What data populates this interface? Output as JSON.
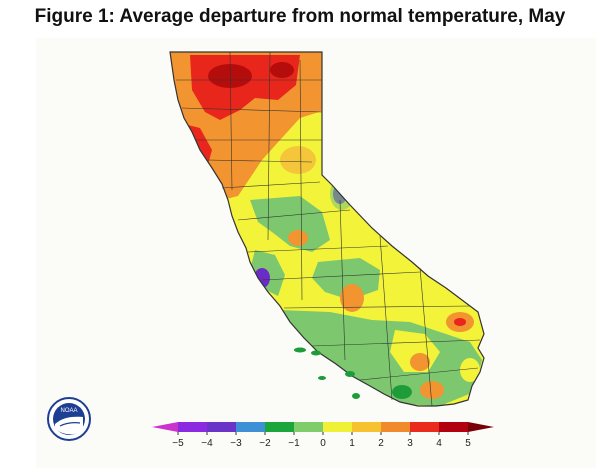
{
  "title": "Figure 1: Average departure from normal temperature, May",
  "logo": {
    "text": "NOAA",
    "name": "noaa-logo"
  },
  "legend": {
    "ticks": [
      "−5",
      "−4",
      "−3",
      "−2",
      "−1",
      "0",
      "1",
      "2",
      "3",
      "4",
      "5"
    ],
    "colors": [
      "#cc33cc",
      "#8a2be2",
      "#6b34c8",
      "#3d8fd6",
      "#1ba63c",
      "#7fcc6a",
      "#f0f036",
      "#f7c230",
      "#f08a2a",
      "#ea2a1c",
      "#b3000f",
      "#7a0008"
    ]
  },
  "map_colors": {
    "background": "#f3f33a",
    "red": "#e8261c",
    "dark_red": "#b50c0c",
    "orange": "#f29430",
    "yellow_orange": "#f6c63a",
    "green": "#7dc86e",
    "dark_green": "#1f9c3a",
    "purple": "#6b2bc6",
    "border": "#333333"
  }
}
